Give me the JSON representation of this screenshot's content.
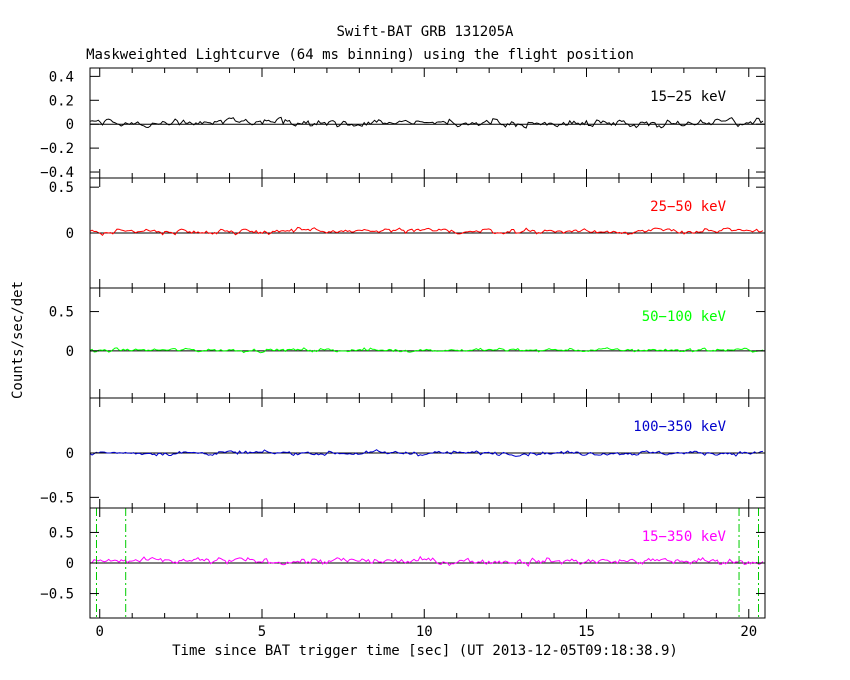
{
  "chart_data": {
    "type": "line",
    "title": "Swift-BAT GRB 131205A",
    "subtitle": "Maskweighted Lightcurve (64 ms binning) using the flight position",
    "xlabel": "Time since BAT trigger time [sec] (UT 2013-12-05T09:18:38.9)",
    "ylabel": "Counts/sec/det",
    "xlim": [
      -0.3,
      20.5
    ],
    "x_ticks": [
      0,
      5,
      10,
      15,
      20
    ],
    "x_tick_labels": [
      "0",
      "5",
      "10",
      "15",
      "20"
    ],
    "bin_size_sec": 0.064,
    "vertical_markers": [
      -0.1,
      0.8,
      19.7,
      20.3
    ],
    "panels": [
      {
        "band": "15−25 keV",
        "color": "#000000",
        "ylim": [
          -0.45,
          0.47
        ],
        "y_ticks": [
          -0.4,
          -0.2,
          0,
          0.2,
          0.4
        ],
        "y_tick_labels": [
          "−0.4",
          "−0.2",
          "0",
          "0.2",
          "0.4"
        ],
        "mean": 0.01,
        "noise_sigma": 0.022
      },
      {
        "band": "25−50 keV",
        "color": "#ff0000",
        "ylim": [
          -0.6,
          0.6
        ],
        "y_ticks": [
          0,
          0.5
        ],
        "y_tick_labels": [
          "0",
          "0.5"
        ],
        "mean": 0.02,
        "noise_sigma": 0.02
      },
      {
        "band": "50−100 keV",
        "color": "#00ff00",
        "ylim": [
          -0.6,
          0.8
        ],
        "y_ticks": [
          0,
          0.5
        ],
        "y_tick_labels": [
          "0",
          "0.5"
        ],
        "mean": 0.01,
        "noise_sigma": 0.017
      },
      {
        "band": "100−350 keV",
        "color": "#0000cc",
        "ylim": [
          -0.62,
          0.62
        ],
        "y_ticks": [
          -0.5,
          0
        ],
        "y_tick_labels": [
          "−0.5",
          "0"
        ],
        "mean": 0.0,
        "noise_sigma": 0.017
      },
      {
        "band": "15−350 keV",
        "color": "#ff00ff",
        "ylim": [
          -0.9,
          0.9
        ],
        "y_ticks": [
          -0.5,
          0,
          0.5
        ],
        "y_tick_labels": [
          "−0.5",
          "0",
          "0.5"
        ],
        "mean": 0.03,
        "noise_sigma": 0.04
      }
    ],
    "marker_color": "#00cc00",
    "grid": false
  }
}
